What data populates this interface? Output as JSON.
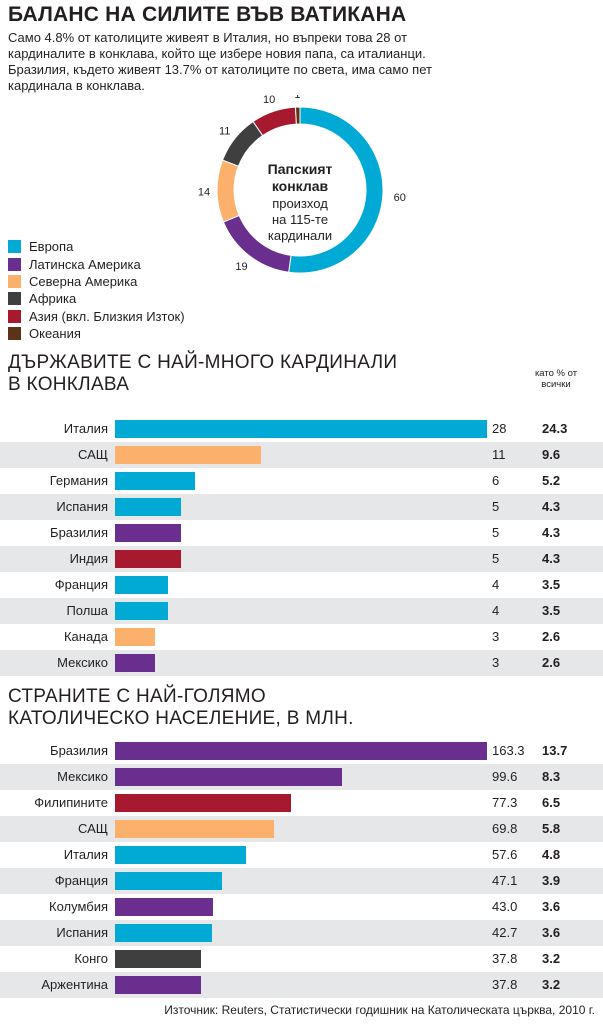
{
  "title": "БАЛАНС НА СИЛИТЕ ВЪВ ВАТИКАНА",
  "intro": "Само 4.8% от католиците живеят в Италия, но въпреки това 28 от кардиналите в конклава, който ще избере новия папа, са италианци. Бразилия, където живеят 13.7% от католиците по света, има само пет кардинала в конклава.",
  "colors": {
    "europe": "#00aad4",
    "latin_america": "#6a2e8e",
    "north_america": "#fbb16b",
    "africa": "#3f3f40",
    "asia": "#a6192e",
    "oceania": "#5c3317",
    "row_shade": "#e6e7e8"
  },
  "legend": [
    {
      "label": "Европа",
      "color": "#00aad4"
    },
    {
      "label": "Латинска Америка",
      "color": "#6a2e8e"
    },
    {
      "label": "Северна Америка",
      "color": "#fbb16b"
    },
    {
      "label": "Африка",
      "color": "#3f3f40"
    },
    {
      "label": "Азия (вкл. Близкия Изток)",
      "color": "#a6192e"
    },
    {
      "label": "Океания",
      "color": "#5c3317"
    }
  ],
  "section1": {
    "title_line1": "ДЪРЖАВИТЕ С НАЙ-МНОГО КАРДИНАЛИ",
    "title_line2": "В КОНКЛАВА"
  },
  "pct_note": "като % от всички",
  "section2": {
    "title_line1": "СТРАНИТЕ С НАЙ-ГОЛЯМО",
    "title_line2": "КАТОЛИЧЕСКО НАСЕЛЕНИЕ, В МЛН."
  },
  "source": "Източник: Reuters, Статистически годишник на Католическата църква, 2010 г.",
  "chart_data": [
    {
      "type": "pie",
      "center_label_bold": "Папският конклав",
      "center_label": "произход на 115-те кардинали",
      "categories": [
        "Европа",
        "Латинска Америка",
        "Северна Америка",
        "Африка",
        "Азия (вкл. Близкия Изток)",
        "Океания"
      ],
      "values": [
        60,
        19,
        14,
        11,
        10,
        1
      ],
      "colors": [
        "#00aad4",
        "#6a2e8e",
        "#fbb16b",
        "#3f3f40",
        "#a6192e",
        "#5c3317"
      ]
    },
    {
      "type": "bar",
      "orientation": "horizontal",
      "categories": [
        "Италия",
        "САЩ",
        "Германия",
        "Испания",
        "Бразилия",
        "Индия",
        "Франция",
        "Полша",
        "Канада",
        "Мексико"
      ],
      "values": [
        28,
        11,
        6,
        5,
        5,
        5,
        4,
        4,
        3,
        3
      ],
      "percent": [
        "24.3",
        "9.6",
        "5.2",
        "4.3",
        "4.3",
        "4.3",
        "3.5",
        "3.5",
        "2.6",
        "2.6"
      ],
      "colors": [
        "#00aad4",
        "#fbb16b",
        "#00aad4",
        "#00aad4",
        "#6a2e8e",
        "#a6192e",
        "#00aad4",
        "#00aad4",
        "#fbb16b",
        "#6a2e8e"
      ],
      "xlim": [
        0,
        28
      ]
    },
    {
      "type": "bar",
      "orientation": "horizontal",
      "categories": [
        "Бразилия",
        "Мексико",
        "Филипините",
        "САЩ",
        "Италия",
        "Франция",
        "Колумбия",
        "Испания",
        "Конго",
        "Аржентина"
      ],
      "values": [
        "163.3",
        "99.6",
        "77.3",
        "69.8",
        "57.6",
        "47.1",
        "43.0",
        "42.7",
        "37.8",
        "37.8"
      ],
      "percent": [
        "13.7",
        "8.3",
        "6.5",
        "5.8",
        "4.8",
        "3.9",
        "3.6",
        "3.6",
        "3.2",
        "3.2"
      ],
      "colors": [
        "#6a2e8e",
        "#6a2e8e",
        "#a6192e",
        "#fbb16b",
        "#00aad4",
        "#00aad4",
        "#6a2e8e",
        "#00aad4",
        "#3f3f40",
        "#6a2e8e"
      ],
      "xlim": [
        0,
        163.3
      ]
    }
  ]
}
